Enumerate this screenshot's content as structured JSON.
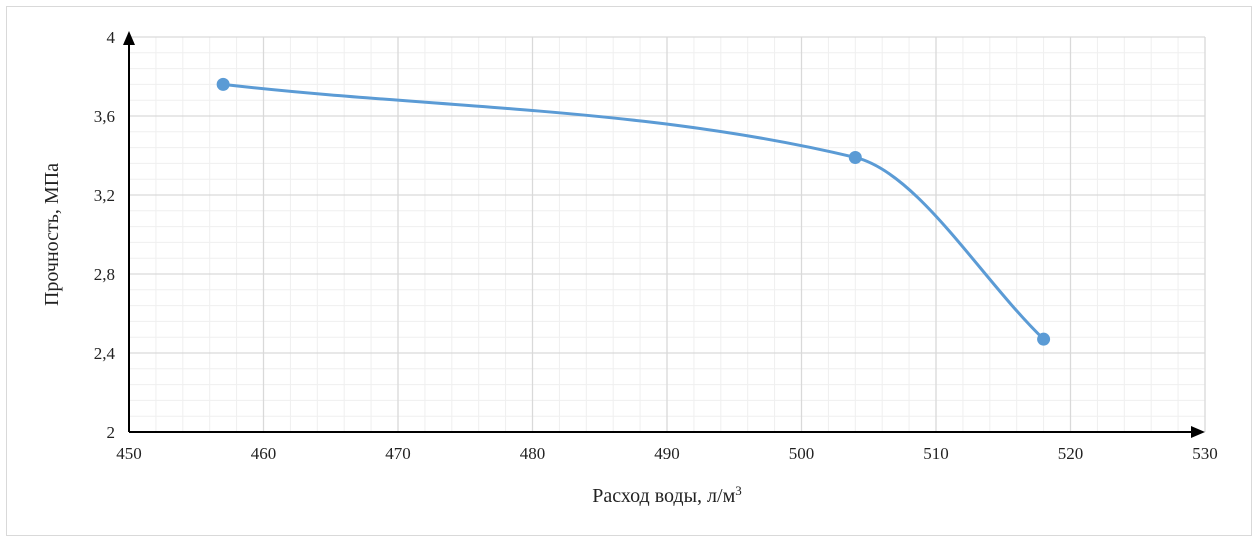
{
  "chart_data": {
    "type": "line",
    "xlabel": "Расход воды, л/м",
    "xlabel_sup": "3",
    "ylabel": "Прочность, МПа",
    "xlim": [
      450,
      530
    ],
    "ylim": [
      2,
      4
    ],
    "x_ticks": [
      "450",
      "460",
      "470",
      "480",
      "490",
      "500",
      "510",
      "520",
      "530"
    ],
    "y_ticks": [
      "2",
      "2,4",
      "2,8",
      "3,2",
      "3,6",
      "4"
    ],
    "x_tick_values": [
      450,
      460,
      470,
      480,
      490,
      500,
      510,
      520,
      530
    ],
    "y_tick_values": [
      2,
      2.4,
      2.8,
      3.2,
      3.6,
      4
    ],
    "grid": true,
    "smooth": true,
    "series": [
      {
        "x": [
          457,
          504,
          518
        ],
        "y": [
          3.76,
          3.39,
          2.47
        ]
      }
    ],
    "colors": {
      "series": "#5b9bd5",
      "axis": "#000000",
      "grid_major": "#d9d9d9",
      "grid_minor": "#efefef"
    }
  }
}
